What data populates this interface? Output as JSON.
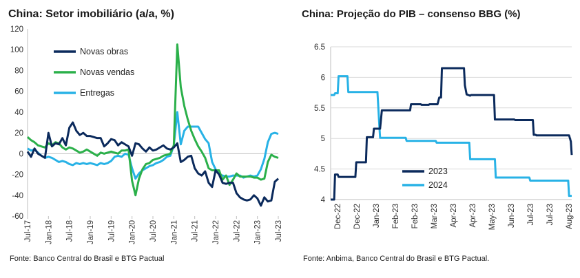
{
  "charts_left": {
    "title": "China: Setor imobiliário (a/a, %)",
    "source": "Fonte: Banco Central do Brasil e BTG Pactual"
  },
  "charts_right": {
    "title": "China: Projeção do PIB – consenso BBG (%)",
    "source": "Fonte: Anbima, Banco Central do Brasil e BTG Pactual."
  },
  "chart_data": [
    {
      "type": "line",
      "title": "China: Setor imobiliário (a/a, %)",
      "xlabel": "",
      "ylabel": "",
      "ylim": [
        -60,
        120
      ],
      "yticks": [
        -60,
        -40,
        -20,
        0,
        20,
        40,
        60,
        80,
        100,
        120
      ],
      "xlim": [
        "2017-07",
        "2023-07"
      ],
      "xtick_labels": [
        "Jul-17",
        "Jan-18",
        "Jul-18",
        "Jan-19",
        "Jul-19",
        "Jan-20",
        "Jul-20",
        "Jan-21",
        "Jul-21",
        "Jan-22",
        "Jul-22",
        "Jan-23",
        "Jul-23"
      ],
      "grid": false,
      "legend_position": "top-left",
      "x": [
        "2017-07",
        "2017-08",
        "2017-09",
        "2017-10",
        "2017-11",
        "2017-12",
        "2018-01",
        "2018-02",
        "2018-03",
        "2018-04",
        "2018-05",
        "2018-06",
        "2018-07",
        "2018-08",
        "2018-09",
        "2018-10",
        "2018-11",
        "2018-12",
        "2019-01",
        "2019-02",
        "2019-03",
        "2019-04",
        "2019-05",
        "2019-06",
        "2019-07",
        "2019-08",
        "2019-09",
        "2019-10",
        "2019-11",
        "2019-12",
        "2020-01",
        "2020-02",
        "2020-03",
        "2020-04",
        "2020-05",
        "2020-06",
        "2020-07",
        "2020-08",
        "2020-09",
        "2020-10",
        "2020-11",
        "2020-12",
        "2021-01",
        "2021-02",
        "2021-03",
        "2021-04",
        "2021-05",
        "2021-06",
        "2021-07",
        "2021-08",
        "2021-09",
        "2021-10",
        "2021-11",
        "2021-12",
        "2022-01",
        "2022-02",
        "2022-03",
        "2022-04",
        "2022-05",
        "2022-06",
        "2022-07",
        "2022-08",
        "2022-09",
        "2022-10",
        "2022-11",
        "2022-12",
        "2023-01",
        "2023-02",
        "2023-03",
        "2023-04",
        "2023-05",
        "2023-06",
        "2023-07"
      ],
      "series": [
        {
          "name": "Novas obras",
          "color": "#0b2a5c",
          "values": [
            2,
            -3,
            5,
            0,
            -2,
            -4,
            20,
            7,
            10,
            9,
            15,
            8,
            25,
            30,
            22,
            18,
            20,
            17,
            17,
            16,
            15,
            15,
            7,
            10,
            14,
            13,
            8,
            11,
            9,
            7,
            -2,
            10,
            9,
            5,
            2,
            6,
            3,
            4,
            6,
            8,
            5,
            4,
            6,
            10,
            -8,
            -6,
            -3,
            -2,
            -14,
            -19,
            -21,
            -17,
            -28,
            -32,
            -16,
            -20,
            -28,
            -29,
            -28,
            -28,
            -38,
            -42,
            -44,
            -45,
            -44,
            -40,
            -43,
            -50,
            -42,
            -46,
            -45,
            -27,
            -24
          ]
        },
        {
          "name": "Novas vendas",
          "color": "#2bb04a",
          "values": [
            16,
            13,
            11,
            8,
            7,
            6,
            10,
            8,
            11,
            10,
            6,
            4,
            6,
            5,
            3,
            1,
            2,
            4,
            2,
            0,
            -2,
            1,
            0,
            1,
            2,
            1,
            0,
            3,
            3,
            4,
            -26,
            -40,
            -24,
            -15,
            -10,
            -9,
            -6,
            -5,
            -4,
            -2,
            -1,
            0,
            8,
            105,
            64,
            46,
            33,
            22,
            14,
            7,
            2,
            -4,
            -14,
            -16,
            -16,
            -16,
            -25,
            -21,
            -30,
            -25,
            -19,
            -22,
            -22,
            -22,
            -22,
            -23,
            -23,
            -25,
            -24,
            -8,
            -1,
            -3,
            -4
          ]
        },
        {
          "name": "Entregas",
          "color": "#28b2e6",
          "values": [
            5,
            3,
            4,
            1,
            -2,
            -4,
            -3,
            -4,
            -6,
            -8,
            -7,
            -8,
            -10,
            -11,
            -9,
            -10,
            -9,
            -10,
            -9,
            -10,
            -11,
            -9,
            -10,
            -9,
            -7,
            -3,
            -2,
            -3,
            0,
            -1,
            -14,
            -24,
            -19,
            -16,
            -14,
            -12,
            -11,
            -9,
            -8,
            -6,
            -3,
            -2,
            8,
            40,
            9,
            22,
            26,
            26,
            26,
            26,
            20,
            14,
            10,
            -8,
            -15,
            -20,
            -21,
            -22,
            -22,
            -21,
            -21,
            -21,
            -23,
            -22,
            -21,
            -22,
            -21,
            -15,
            -5,
            11,
            19,
            20,
            19
          ]
        }
      ]
    },
    {
      "type": "line",
      "title": "China: Projeção do PIB – consenso BBG (%)",
      "xlabel": "",
      "ylabel": "",
      "ylim": [
        4,
        6.5
      ],
      "yticks": [
        4,
        4.5,
        5,
        5.5,
        6,
        6.5
      ],
      "xlim": [
        "2022-12-01",
        "2023-08-31"
      ],
      "xtick_labels": [
        "Dec-22",
        "Dec-22",
        "Jan-23",
        "Feb-23",
        "Feb-23",
        "Mar-23",
        "Apr-23",
        "Apr-23",
        "May-23",
        "Jun-23",
        "Jul-23",
        "Jul-23",
        "Aug-23"
      ],
      "grid": false,
      "legend_position": "lower-middle",
      "series": [
        {
          "name": "2023",
          "color": "#0b2a5c",
          "x": [
            "2022-12-01",
            "2022-12-05",
            "2022-12-06",
            "2022-12-09",
            "2022-12-10",
            "2022-12-29",
            "2022-12-30",
            "2023-01-10",
            "2023-01-11",
            "2023-01-18",
            "2023-01-19",
            "2023-01-26",
            "2023-01-28",
            "2023-02-01",
            "2023-02-02",
            "2023-03-01",
            "2023-03-02",
            "2023-03-13",
            "2023-03-14",
            "2023-03-22",
            "2023-03-23",
            "2023-04-01",
            "2023-04-03",
            "2023-04-05",
            "2023-04-06",
            "2023-05-01",
            "2023-05-02",
            "2023-05-04",
            "2023-05-08",
            "2023-05-09",
            "2023-06-04",
            "2023-06-05",
            "2023-06-27",
            "2023-06-28",
            "2023-07-18",
            "2023-07-19",
            "2023-07-21",
            "2023-07-22",
            "2023-08-28",
            "2023-08-30",
            "2023-08-31"
          ],
          "y": [
            4.0,
            4.0,
            4.41,
            4.41,
            4.37,
            4.37,
            4.61,
            4.61,
            5.02,
            5.02,
            5.16,
            5.16,
            5.46,
            5.46,
            5.46,
            5.46,
            5.56,
            5.56,
            5.55,
            5.55,
            5.56,
            5.56,
            5.67,
            5.67,
            6.15,
            6.15,
            5.87,
            5.72,
            5.7,
            5.71,
            5.71,
            5.31,
            5.31,
            5.3,
            5.3,
            5.06,
            5.06,
            5.05,
            5.05,
            4.95,
            4.73
          ]
        },
        {
          "name": "2024",
          "color": "#28b2e6",
          "x": [
            "2022-12-01",
            "2022-12-05",
            "2022-12-06",
            "2022-12-09",
            "2022-12-10",
            "2022-12-20",
            "2022-12-21",
            "2023-01-22",
            "2023-01-23",
            "2023-01-25",
            "2023-01-26",
            "2023-02-24",
            "2023-02-25",
            "2023-03-30",
            "2023-03-31",
            "2023-05-07",
            "2023-05-08",
            "2023-06-05",
            "2023-06-06",
            "2023-07-14",
            "2023-07-15",
            "2023-08-27",
            "2023-08-28",
            "2023-08-31"
          ],
          "y": [
            5.71,
            5.71,
            5.74,
            5.74,
            6.02,
            6.02,
            5.76,
            5.76,
            5.76,
            5.25,
            5.01,
            5.01,
            4.96,
            4.96,
            4.93,
            4.93,
            4.66,
            4.66,
            4.36,
            4.36,
            4.31,
            4.31,
            4.06,
            4.06
          ]
        }
      ]
    }
  ]
}
